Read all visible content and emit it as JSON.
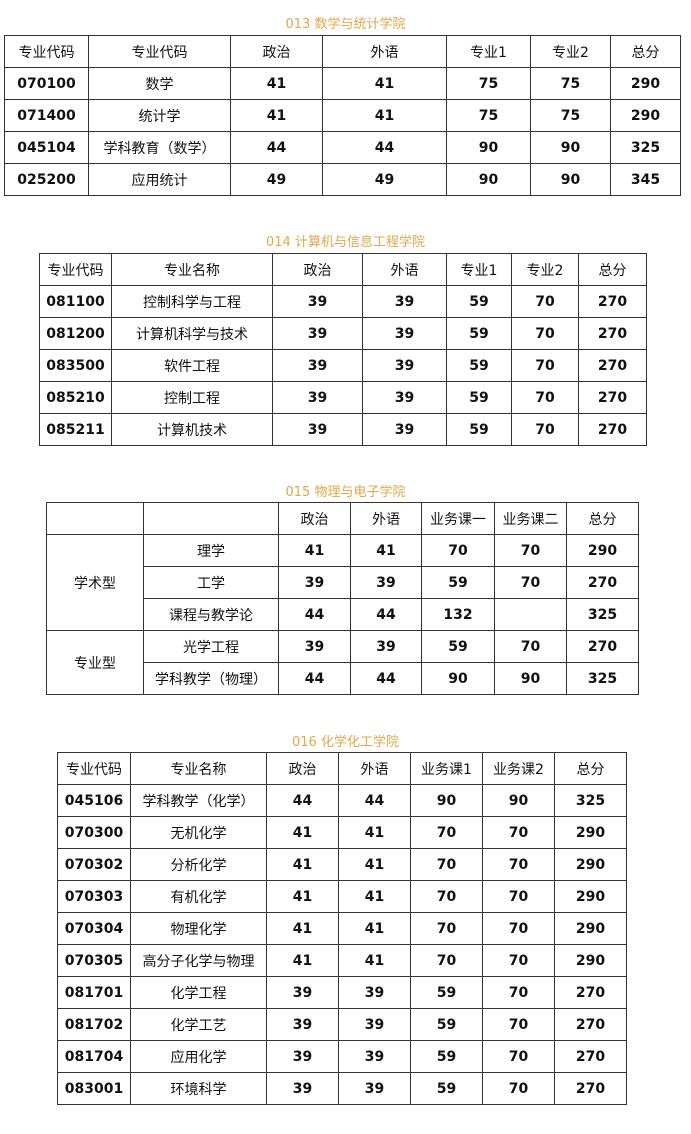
{
  "sections": [
    {
      "title": "013 数学与统计学院",
      "headers": [
        "专业代码",
        "专业代码",
        "政治",
        "外语",
        "专业1",
        "专业2",
        "总分"
      ],
      "rows": [
        [
          "070100",
          "数学",
          "41",
          "41",
          "75",
          "75",
          "290"
        ],
        [
          "071400",
          "统计学",
          "41",
          "41",
          "75",
          "75",
          "290"
        ],
        [
          "045104",
          "学科教育（数学）",
          "44",
          "44",
          "90",
          "90",
          "325"
        ],
        [
          "025200",
          "应用统计",
          "49",
          "49",
          "90",
          "90",
          "345"
        ]
      ]
    },
    {
      "title": "014 计算机与信息工程学院",
      "headers": [
        "专业代码",
        "专业名称",
        "政治",
        "外语",
        "专业1",
        "专业2",
        "总分"
      ],
      "rows": [
        [
          "081100",
          "控制科学与工程",
          "39",
          "39",
          "59",
          "70",
          "270"
        ],
        [
          "081200",
          "计算机科学与技术",
          "39",
          "39",
          "59",
          "70",
          "270"
        ],
        [
          "083500",
          "软件工程",
          "39",
          "39",
          "59",
          "70",
          "270"
        ],
        [
          "085210",
          "控制工程",
          "39",
          "39",
          "59",
          "70",
          "270"
        ],
        [
          "085211",
          "计算机技术",
          "39",
          "39",
          "59",
          "70",
          "270"
        ]
      ]
    },
    {
      "title": "015 物理与电子学院",
      "headers": [
        "",
        "",
        "政治",
        "外语",
        "业务课一",
        "业务课二",
        "总分"
      ],
      "groups": [
        "学术型",
        "专业型"
      ],
      "rows": [
        [
          "理学",
          "41",
          "41",
          "70",
          "70",
          "290"
        ],
        [
          "工学",
          "39",
          "39",
          "59",
          "70",
          "270"
        ],
        [
          "课程与教学论",
          "44",
          "44",
          "132",
          "",
          "325"
        ],
        [
          "光学工程",
          "39",
          "39",
          "59",
          "70",
          "270"
        ],
        [
          "学科教学（物理）",
          "44",
          "44",
          "90",
          "90",
          "325"
        ]
      ]
    },
    {
      "title": "016 化学化工学院",
      "headers": [
        "专业代码",
        "专业名称",
        "政治",
        "外语",
        "业务课1",
        "业务课2",
        "总分"
      ],
      "rows": [
        [
          "045106",
          "学科教学（化学）",
          "44",
          "44",
          "90",
          "90",
          "325"
        ],
        [
          "070300",
          "无机化学",
          "41",
          "41",
          "70",
          "70",
          "290"
        ],
        [
          "070302",
          "分析化学",
          "41",
          "41",
          "70",
          "70",
          "290"
        ],
        [
          "070303",
          "有机化学",
          "41",
          "41",
          "70",
          "70",
          "290"
        ],
        [
          "070304",
          "物理化学",
          "41",
          "41",
          "70",
          "70",
          "290"
        ],
        [
          "070305",
          "高分子化学与物理",
          "41",
          "41",
          "70",
          "70",
          "290"
        ],
        [
          "081701",
          "化学工程",
          "39",
          "39",
          "59",
          "70",
          "270"
        ],
        [
          "081702",
          "化学工艺",
          "39",
          "39",
          "59",
          "70",
          "270"
        ],
        [
          "081704",
          "应用化学",
          "39",
          "39",
          "59",
          "70",
          "270"
        ],
        [
          "083001",
          "环境科学",
          "39",
          "39",
          "59",
          "70",
          "270"
        ]
      ]
    }
  ],
  "title_color": "#e3a64a"
}
